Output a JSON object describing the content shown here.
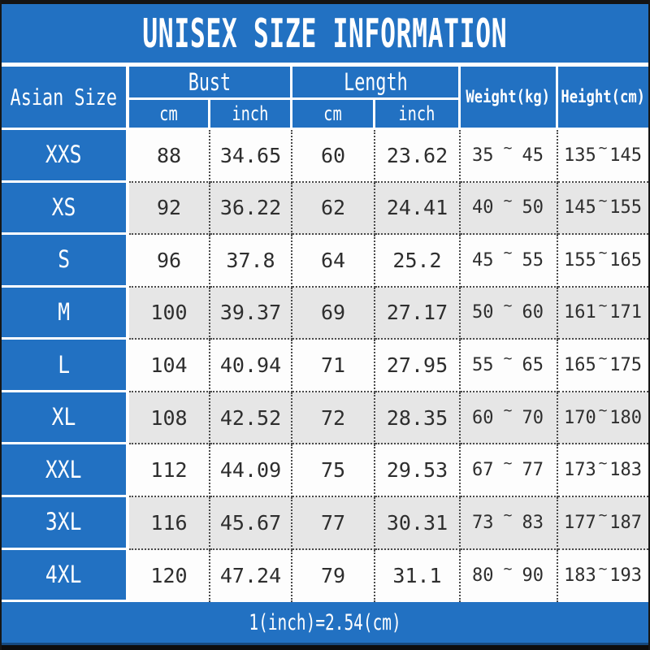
{
  "title": "UNISEX SIZE INFORMATION",
  "colors": {
    "accent_blue": "#2271c2",
    "stripe_gray": "#e6e6e6",
    "border_black": "#141414",
    "footer_edge_navy": "#174a80",
    "cell_text": "#2e2e2e"
  },
  "chart_data": {
    "type": "table",
    "title": "UNISEX SIZE INFORMATION",
    "column_groups": [
      {
        "label": "Asian Size",
        "span": 1
      },
      {
        "label": "Bust",
        "span": 2,
        "sub": [
          "cm",
          "inch"
        ]
      },
      {
        "label": "Length",
        "span": 2,
        "sub": [
          "cm",
          "inch"
        ]
      },
      {
        "label": "Weight(kg)",
        "span": 1
      },
      {
        "label": "Height(cm)",
        "span": 1
      }
    ],
    "range_separator": "~",
    "rows": [
      {
        "size": "XXS",
        "bust_cm": "88",
        "bust_inch": "34.65",
        "length_cm": "60",
        "length_inch": "23.62",
        "weight_min": "35",
        "weight_max": "45",
        "height_min": "135",
        "height_max": "145"
      },
      {
        "size": "XS",
        "bust_cm": "92",
        "bust_inch": "36.22",
        "length_cm": "62",
        "length_inch": "24.41",
        "weight_min": "40",
        "weight_max": "50",
        "height_min": "145",
        "height_max": "155"
      },
      {
        "size": "S",
        "bust_cm": "96",
        "bust_inch": "37.8",
        "length_cm": "64",
        "length_inch": "25.2",
        "weight_min": "45",
        "weight_max": "55",
        "height_min": "155",
        "height_max": "165"
      },
      {
        "size": "M",
        "bust_cm": "100",
        "bust_inch": "39.37",
        "length_cm": "69",
        "length_inch": "27.17",
        "weight_min": "50",
        "weight_max": "60",
        "height_min": "161",
        "height_max": "171"
      },
      {
        "size": "L",
        "bust_cm": "104",
        "bust_inch": "40.94",
        "length_cm": "71",
        "length_inch": "27.95",
        "weight_min": "55",
        "weight_max": "65",
        "height_min": "165",
        "height_max": "175"
      },
      {
        "size": "XL",
        "bust_cm": "108",
        "bust_inch": "42.52",
        "length_cm": "72",
        "length_inch": "28.35",
        "weight_min": "60",
        "weight_max": "70",
        "height_min": "170",
        "height_max": "180"
      },
      {
        "size": "XXL",
        "bust_cm": "112",
        "bust_inch": "44.09",
        "length_cm": "75",
        "length_inch": "29.53",
        "weight_min": "67",
        "weight_max": "77",
        "height_min": "173",
        "height_max": "183"
      },
      {
        "size": "3XL",
        "bust_cm": "116",
        "bust_inch": "45.67",
        "length_cm": "77",
        "length_inch": "30.31",
        "weight_min": "73",
        "weight_max": "83",
        "height_min": "177",
        "height_max": "187"
      },
      {
        "size": "4XL",
        "bust_cm": "120",
        "bust_inch": "47.24",
        "length_cm": "79",
        "length_inch": "31.1",
        "weight_min": "80",
        "weight_max": "90",
        "height_min": "183",
        "height_max": "193"
      }
    ],
    "note": "1(inch)=2.54(cm)"
  }
}
